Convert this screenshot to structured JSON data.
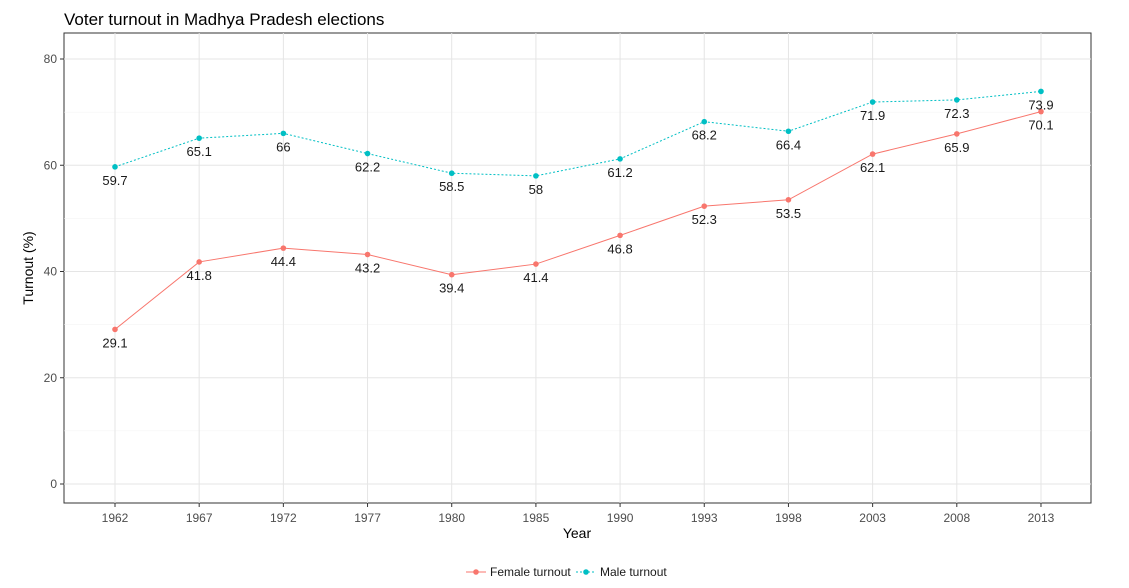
{
  "chart_data": {
    "type": "line",
    "title": "Voter turnout in Madhya Pradesh elections",
    "xlabel": "Year",
    "ylabel": "Turnout (%)",
    "categories": [
      "1962",
      "1967",
      "1972",
      "1977",
      "1980",
      "1985",
      "1990",
      "1993",
      "1998",
      "2003",
      "2008",
      "2013"
    ],
    "ylim": [
      0,
      80
    ],
    "yticks": [
      0,
      20,
      40,
      60,
      80
    ],
    "grid": true,
    "legend_position": "bottom",
    "series": [
      {
        "name": "Female turnout",
        "color": "#f8766d",
        "line_style": "solid",
        "values": [
          29.1,
          41.8,
          44.4,
          43.2,
          39.4,
          41.4,
          46.8,
          52.3,
          53.5,
          62.1,
          65.9,
          70.1
        ],
        "labels": [
          "29.1",
          "41.8",
          "44.4",
          "43.2",
          "39.4",
          "41.4",
          "46.8",
          "52.3",
          "53.5",
          "62.1",
          "65.9",
          "70.1"
        ]
      },
      {
        "name": "Male turnout",
        "color": "#00bfc4",
        "line_style": "dotted",
        "values": [
          59.7,
          65.1,
          66,
          62.2,
          58.5,
          58,
          61.2,
          68.2,
          66.4,
          71.9,
          72.3,
          73.9
        ],
        "labels": [
          "59.7",
          "65.1",
          "66",
          "62.2",
          "58.5",
          "58",
          "61.2",
          "68.2",
          "66.4",
          "71.9",
          "72.3",
          "73.9"
        ]
      }
    ]
  }
}
